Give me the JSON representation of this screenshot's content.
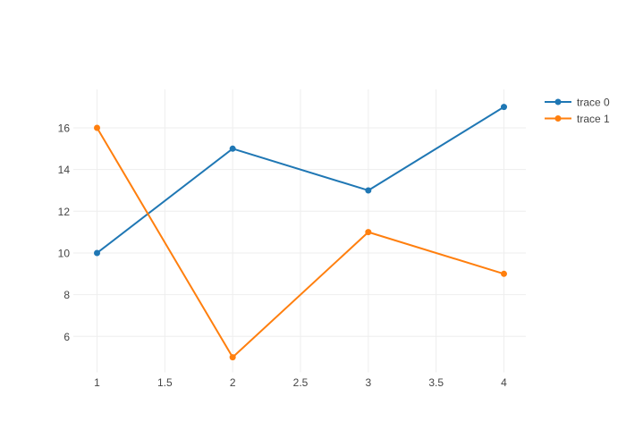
{
  "figure": {
    "background": "#ffffff",
    "text_color": "#444444",
    "grid_color": "#eeeeee"
  },
  "chart_data": {
    "type": "line",
    "mode": "lines+markers",
    "title": "",
    "xlabel": "",
    "ylabel": "",
    "x": [
      1,
      2,
      3,
      4
    ],
    "series": [
      {
        "name": "trace 0",
        "color": "#1f77b4",
        "values": [
          10,
          15,
          13,
          17
        ]
      },
      {
        "name": "trace 1",
        "color": "#ff7f0e",
        "values": [
          16,
          5,
          11,
          9
        ]
      }
    ],
    "x_ticks": [
      1,
      1.5,
      2,
      2.5,
      3,
      3.5,
      4
    ],
    "x_tick_labels": [
      "1",
      "1.5",
      "2",
      "2.5",
      "3",
      "3.5",
      "4"
    ],
    "y_ticks": [
      6,
      8,
      10,
      12,
      14,
      16
    ],
    "y_tick_labels": [
      "6",
      "8",
      "10",
      "12",
      "14",
      "16"
    ],
    "x_range": [
      0.82,
      4.18
    ],
    "y_range": [
      4.3,
      17.85
    ],
    "grid": true,
    "legend": {
      "position": "top-right",
      "entries": [
        "trace 0",
        "trace 1"
      ]
    }
  }
}
